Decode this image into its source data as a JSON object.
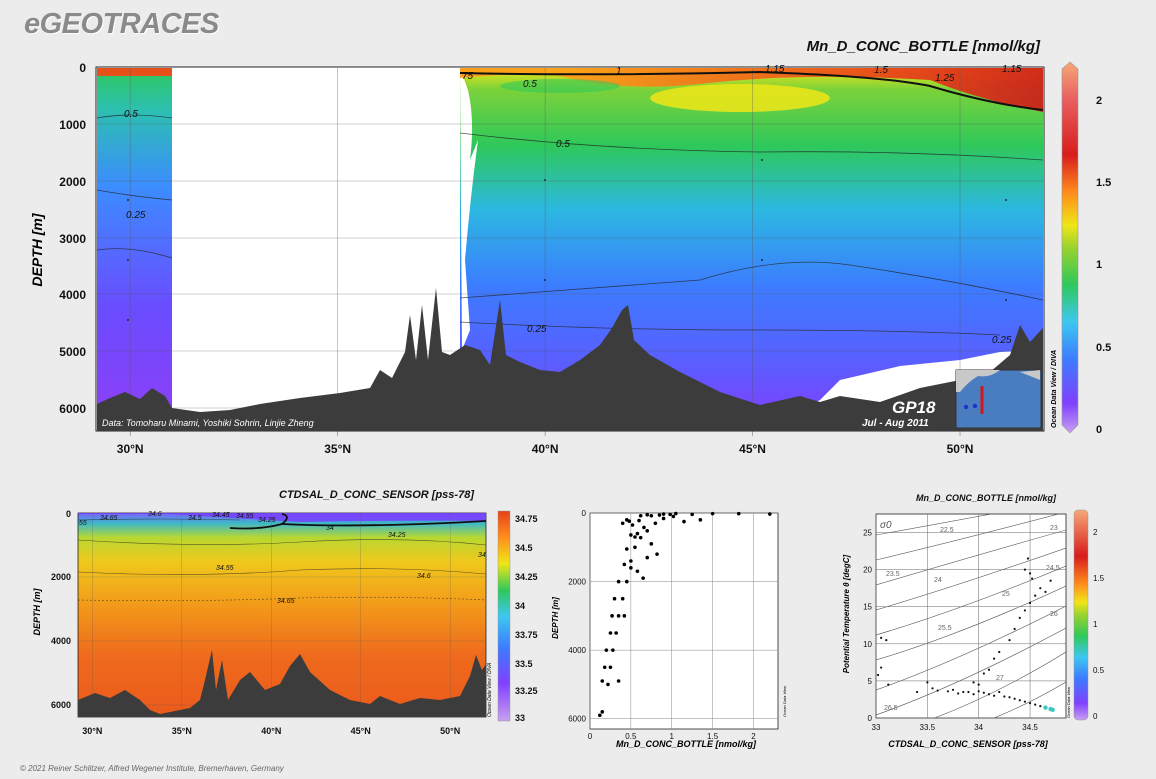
{
  "brand": "eGEOTRACES",
  "footer": "© 2021 Reiner Schlitzer, Alfred Wegener Institute, Bremerhaven, Germany",
  "main_section": {
    "title": "Mn_D_CONC_BOTTLE [nmol/kg]",
    "ylabel": "DEPTH [m]",
    "data_credit": "Data: Tomoharu Minami, Yoshiki Sohrin, Linjie Zheng",
    "cruise": "GP18",
    "period": "Jul - Aug 2011",
    "odv_credit": "Ocean Data View / DIVA"
  },
  "salinity_section": {
    "title": "CTDSAL_D_CONC_SENSOR [pss-78]",
    "ylabel": "DEPTH [m]",
    "odv_credit": "Ocean Data View / DIVA"
  },
  "profile_plot": {
    "xlabel": "Mn_D_CONC_BOTTLE [nmol/kg]",
    "ylabel": "DEPTH [m]",
    "odv_credit": "Ocean Data View"
  },
  "ts_plot": {
    "title": "Mn_D_CONC_BOTTLE [nmol/kg]",
    "xlabel": "CTDSAL_D_CONC_SENSOR [pss-78]",
    "ylabel": "Potential Temperature θ [degC]",
    "sigma_label": "σ0",
    "odv_credit": "Ocean Data View"
  },
  "chart_data": [
    {
      "type": "heatmap",
      "title": "Mn_D_CONC_BOTTLE [nmol/kg]",
      "ylabel": "DEPTH [m]",
      "x_ticks": [
        "30°N",
        "35°N",
        "40°N",
        "45°N",
        "50°N"
      ],
      "x_tick_values": [
        30,
        35,
        40,
        45,
        50
      ],
      "xlim": [
        29.2,
        52.0
      ],
      "y_ticks": [
        0,
        1000,
        2000,
        3000,
        4000,
        5000,
        6000
      ],
      "ylim": [
        6300,
        0
      ],
      "colorbar": {
        "ticks": [
          0,
          0.5,
          1,
          1.5,
          2
        ],
        "range": [
          0,
          2.2
        ]
      },
      "contour_labels": [
        "75",
        "0.5",
        "1",
        "1.15",
        "1.5",
        "1.25",
        "1.15",
        "0.5",
        "0.5",
        "0.25",
        "0.25",
        "0.25"
      ],
      "grid": true
    },
    {
      "type": "heatmap",
      "title": "CTDSAL_D_CONC_SENSOR [pss-78]",
      "ylabel": "DEPTH [m]",
      "x_ticks": [
        "30°N",
        "35°N",
        "40°N",
        "45°N",
        "50°N"
      ],
      "x_tick_values": [
        30,
        35,
        40,
        45,
        50
      ],
      "xlim": [
        29.2,
        52.0
      ],
      "y_ticks": [
        0,
        2000,
        4000,
        6000
      ],
      "ylim": [
        6300,
        0
      ],
      "colorbar": {
        "ticks": [
          "34.75",
          "34.5",
          "34.25",
          "34",
          "33.75",
          "33.5",
          "33.25",
          "33"
        ],
        "range": [
          33,
          34.75
        ]
      },
      "contour_labels": [
        "55",
        "34.65",
        "34.6",
        "34.5",
        "34.45",
        "34.55",
        "34.25",
        "34",
        "34.25",
        "34",
        "34.55",
        "34.6",
        "34.65"
      ],
      "grid": true
    },
    {
      "type": "scatter",
      "xlabel": "Mn_D_CONC_BOTTLE [nmol/kg]",
      "ylabel": "DEPTH [m]",
      "x_ticks": [
        "0",
        "0.5",
        "1",
        "1.5",
        "2"
      ],
      "x_tick_values": [
        0,
        0.5,
        1,
        1.5,
        2
      ],
      "xlim": [
        0,
        2.3
      ],
      "y_ticks": [
        "0",
        "2000",
        "4000",
        "6000"
      ],
      "y_tick_values": [
        0,
        2000,
        4000,
        6000
      ],
      "ylim": [
        6300,
        0
      ],
      "grid": true,
      "points": [
        [
          1.82,
          20
        ],
        [
          2.2,
          30
        ],
        [
          1.5,
          20
        ],
        [
          1.25,
          40
        ],
        [
          1.05,
          15
        ],
        [
          0.98,
          40
        ],
        [
          0.9,
          30
        ],
        [
          0.85,
          60
        ],
        [
          1.35,
          200
        ],
        [
          1.15,
          250
        ],
        [
          1.02,
          100
        ],
        [
          0.75,
          80
        ],
        [
          0.7,
          50
        ],
        [
          0.62,
          80
        ],
        [
          0.6,
          220
        ],
        [
          0.52,
          350
        ],
        [
          0.48,
          240
        ],
        [
          0.45,
          200
        ],
        [
          0.4,
          300
        ],
        [
          0.9,
          160
        ],
        [
          0.8,
          300
        ],
        [
          0.66,
          420
        ],
        [
          0.7,
          520
        ],
        [
          0.58,
          600
        ],
        [
          0.55,
          700
        ],
        [
          0.5,
          640
        ],
        [
          0.62,
          720
        ],
        [
          0.75,
          900
        ],
        [
          0.55,
          1000
        ],
        [
          0.45,
          1050
        ],
        [
          0.82,
          1200
        ],
        [
          0.7,
          1300
        ],
        [
          0.5,
          1400
        ],
        [
          0.42,
          1500
        ],
        [
          0.5,
          1600
        ],
        [
          0.58,
          1700
        ],
        [
          0.65,
          1900
        ],
        [
          0.35,
          2000
        ],
        [
          0.45,
          2000
        ],
        [
          0.3,
          2500
        ],
        [
          0.4,
          2500
        ],
        [
          0.27,
          3000
        ],
        [
          0.35,
          3000
        ],
        [
          0.42,
          3000
        ],
        [
          0.25,
          3500
        ],
        [
          0.32,
          3500
        ],
        [
          0.2,
          4000
        ],
        [
          0.28,
          4000
        ],
        [
          0.18,
          4500
        ],
        [
          0.25,
          4500
        ],
        [
          0.15,
          4900
        ],
        [
          0.22,
          5000
        ],
        [
          0.35,
          4900
        ],
        [
          0.12,
          5900
        ],
        [
          0.15,
          5800
        ]
      ]
    },
    {
      "type": "scatter",
      "title": "Mn_D_CONC_BOTTLE [nmol/kg]",
      "xlabel": "CTDSAL_D_CONC_SENSOR [pss-78]",
      "ylabel": "Potential Temperature θ [degC]",
      "x_ticks": [
        "33",
        "33.5",
        "34",
        "34.5"
      ],
      "x_tick_values": [
        33,
        33.5,
        34,
        34.5
      ],
      "xlim": [
        33,
        34.85
      ],
      "y_ticks": [
        "0",
        "5",
        "10",
        "15",
        "20",
        "25"
      ],
      "y_tick_values": [
        0,
        5,
        10,
        15,
        20,
        25
      ],
      "ylim": [
        0,
        27.5
      ],
      "density_labels": [
        "22.5",
        "23",
        "23.5",
        "24",
        "24.5",
        "25",
        "25.5",
        "26",
        "26.5",
        "27"
      ],
      "colorbar": {
        "ticks": [
          "0",
          "0.5",
          "1",
          "1.5",
          "2"
        ],
        "range": [
          0,
          2.2
        ]
      },
      "grid": true,
      "points": [
        [
          33.05,
          10.8
        ],
        [
          33.1,
          10.5
        ],
        [
          33.02,
          5.8
        ],
        [
          33.05,
          6.8
        ],
        [
          33.12,
          4.5
        ],
        [
          33.4,
          3.5
        ],
        [
          33.5,
          4.8
        ],
        [
          33.55,
          4
        ],
        [
          33.6,
          3.7
        ],
        [
          33.7,
          3.6
        ],
        [
          33.75,
          3.8
        ],
        [
          33.85,
          3.5
        ],
        [
          33.9,
          3.5
        ],
        [
          33.95,
          3.2
        ],
        [
          34.0,
          3.6
        ],
        [
          34.05,
          3.4
        ],
        [
          34.1,
          3.2
        ],
        [
          34.15,
          3
        ],
        [
          34.2,
          3.5
        ],
        [
          34.25,
          2.9
        ],
        [
          34.3,
          2.8
        ],
        [
          34.35,
          2.6
        ],
        [
          34.4,
          2.4
        ],
        [
          34.45,
          2.2
        ],
        [
          34.5,
          2
        ],
        [
          34.55,
          1.8
        ],
        [
          34.6,
          1.6
        ],
        [
          34.65,
          1.4
        ],
        [
          34.7,
          1.2
        ],
        [
          34.72,
          1.1
        ],
        [
          34.1,
          6.5
        ],
        [
          34.15,
          8
        ],
        [
          34.2,
          8.9
        ],
        [
          34.3,
          10.5
        ],
        [
          34.35,
          12
        ],
        [
          34.4,
          13.5
        ],
        [
          34.45,
          14.5
        ],
        [
          34.5,
          15.5
        ],
        [
          34.55,
          16.5
        ],
        [
          34.6,
          17.5
        ],
        [
          34.65,
          17
        ],
        [
          34.7,
          18.5
        ],
        [
          34.45,
          20
        ],
        [
          34.48,
          21.5
        ],
        [
          34.5,
          19.5
        ],
        [
          34.52,
          18.8
        ],
        [
          34.05,
          6
        ],
        [
          34.0,
          4.5
        ],
        [
          33.95,
          4.8
        ],
        [
          33.8,
          3.3
        ]
      ]
    }
  ],
  "colors": {
    "background": "#ececec",
    "seafloor": "#3c3c3c",
    "contour": "#222222",
    "colorbar_stops": [
      "#c9a0f0",
      "#8040ff",
      "#3c7cff",
      "#3cc8f0",
      "#2ec85a",
      "#9ad22e",
      "#f0e616",
      "#ff8a1c",
      "#d81c1c",
      "#f5a878"
    ]
  }
}
